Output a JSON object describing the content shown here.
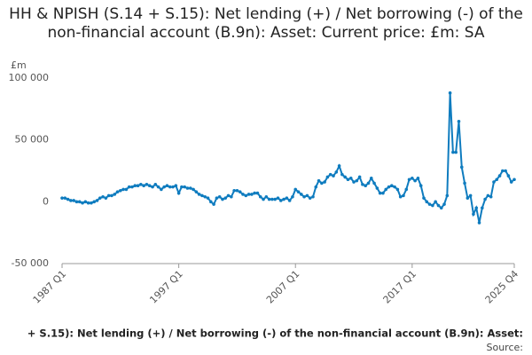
{
  "chart_data": {
    "type": "line",
    "title": "HH & NPISH (S.14 + S.15): Net lending (+) / Net borrowing (-) of the non-financial account (B.9n): Asset: Current price: £m: SA",
    "y_label": "£m",
    "footer": "+ S.15): Net lending (+) / Net borrowing (-) of the non-financial account (B.9n): Asset:",
    "source": "Source:",
    "color": "#0f7cbf",
    "ylim": [
      -50000,
      100000
    ],
    "yticks": [
      {
        "value": -50000,
        "label": "-50 000"
      },
      0,
      {
        "value": 50000,
        "label": "50 000"
      },
      {
        "value": 100000,
        "label": "100 000"
      }
    ],
    "grid": false,
    "categories": [
      "1987 Q1",
      null,
      null,
      null,
      null,
      null,
      null,
      null,
      null,
      null,
      null,
      null,
      null,
      null,
      null,
      null,
      null,
      null,
      null,
      null,
      null,
      null,
      null,
      null,
      null,
      null,
      null,
      null,
      null,
      null,
      null,
      null,
      null,
      null,
      null,
      null,
      null,
      null,
      null,
      null,
      "1997 Q1",
      null,
      null,
      null,
      null,
      null,
      null,
      null,
      null,
      null,
      null,
      null,
      null,
      null,
      null,
      null,
      null,
      null,
      null,
      null,
      null,
      null,
      null,
      null,
      null,
      null,
      null,
      null,
      null,
      null,
      null,
      null,
      null,
      null,
      null,
      null,
      null,
      null,
      null,
      null,
      "2007 Q1",
      null,
      null,
      null,
      null,
      null,
      null,
      null,
      null,
      null,
      null,
      null,
      null,
      null,
      null,
      null,
      null,
      null,
      null,
      null,
      null,
      null,
      null,
      null,
      null,
      null,
      null,
      null,
      null,
      null,
      null,
      null,
      null,
      null,
      null,
      null,
      null,
      null,
      null,
      null,
      "2017 Q1",
      null,
      null,
      null,
      null,
      null,
      null,
      null,
      null,
      null,
      null,
      null,
      null,
      null,
      null,
      null,
      null,
      null,
      null,
      null,
      null,
      null,
      null,
      null,
      null,
      null,
      null,
      null,
      null,
      null,
      null,
      null,
      null,
      null,
      null,
      "2025 Q4"
    ],
    "values": [
      3000,
      3000,
      2000,
      1000,
      1000,
      0,
      0,
      -1000,
      0,
      -1000,
      -1000,
      0,
      1000,
      3000,
      4000,
      3000,
      5000,
      5000,
      6000,
      8000,
      9000,
      10000,
      10000,
      12000,
      12000,
      13000,
      13000,
      14000,
      13000,
      14000,
      13000,
      12000,
      14000,
      12000,
      10000,
      12000,
      13000,
      12000,
      12000,
      13000,
      7000,
      12000,
      12000,
      11000,
      11000,
      10000,
      8000,
      6000,
      5000,
      4000,
      3000,
      0,
      -2000,
      3000,
      4000,
      2000,
      3000,
      5000,
      4000,
      9000,
      9000,
      8000,
      6000,
      5000,
      6000,
      6000,
      7000,
      7000,
      4000,
      2000,
      4000,
      2000,
      2000,
      2000,
      3000,
      1000,
      2000,
      3000,
      1000,
      4000,
      10000,
      8000,
      6000,
      4000,
      5000,
      3000,
      4000,
      12000,
      17000,
      15000,
      16000,
      20000,
      22000,
      21000,
      24000,
      29000,
      22000,
      20000,
      18000,
      19000,
      16000,
      17000,
      20000,
      14000,
      13000,
      15000,
      19000,
      15000,
      11000,
      7000,
      7000,
      10000,
      12000,
      13000,
      12000,
      10000,
      4000,
      5000,
      10000,
      18000,
      19000,
      17000,
      19000,
      13000,
      3000,
      0,
      -2000,
      -3000,
      0,
      -3000,
      -5000,
      -2000,
      5000,
      88000,
      40000,
      40000,
      65000,
      28000,
      15000,
      3000,
      5000,
      -10000,
      -5000,
      -17000,
      -5000,
      2000,
      5000,
      4000,
      16000,
      18000,
      21000,
      25000,
      25000,
      21000,
      16000,
      18000
    ]
  }
}
